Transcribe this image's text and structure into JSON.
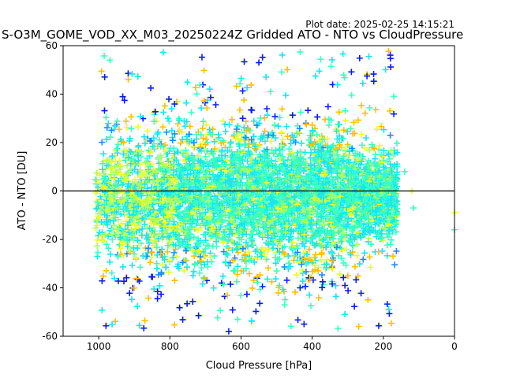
{
  "chart_data": {
    "type": "scatter",
    "title": "S-O3M_GOME_VOD_XX_M03_20250224Z Gridded ATO - NTO vs CloudPressure",
    "plot_date": "Plot date: 2025-02-25 14:15:21",
    "xlabel": "Cloud Pressure [hPa]",
    "ylabel": "ATO - NTO [DU]",
    "xlim": [
      1100,
      0
    ],
    "ylim": [
      -60,
      60
    ],
    "x_inverted": true,
    "xticks": [
      1000,
      800,
      600,
      400,
      200,
      0
    ],
    "yticks": [
      -60,
      -40,
      -20,
      0,
      20,
      40,
      60
    ],
    "reference_line_y": 0,
    "marker": "plus",
    "grid": false,
    "legend": "none",
    "colors": {
      "dark_blue": "#0a1cf0",
      "blue": "#1a8cff",
      "cyan": "#19e6ee",
      "aquamarine": "#3bffc0",
      "light_green": "#a8ff60",
      "yellow": "#e6ff2a",
      "orange": "#ffbf00",
      "axis": "#000000"
    },
    "point_cloud": {
      "x_range": [
        1010,
        160
      ],
      "dense_core_x": [
        1000,
        250
      ],
      "dense_core_y_mean": -3,
      "dense_core_y_spread": 14,
      "outer_envelope_y": [
        -58,
        58
      ],
      "outliers": [
        [
          140,
          8
        ],
        [
          120,
          0
        ],
        [
          115,
          -7
        ],
        [
          0,
          -9
        ],
        [
          0,
          -16
        ]
      ]
    }
  }
}
